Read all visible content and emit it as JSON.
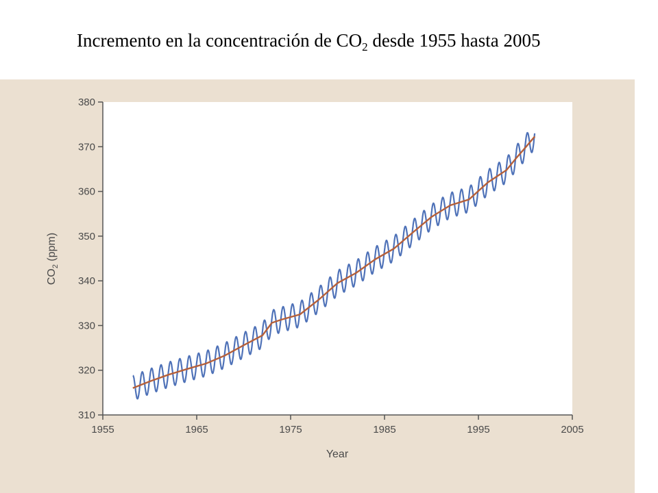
{
  "slide": {
    "title_prefix": "Incremento en la concentración de CO",
    "title_sub": "2",
    "title_suffix": " desde 1955 hasta 2005"
  },
  "chart_data": {
    "type": "line",
    "title": "Incremento en la concentración de CO2 desde 1955 hasta 2005",
    "xlabel": "Year",
    "ylabel_main": "CO",
    "ylabel_sub": "2",
    "ylabel_unit": " (ppm)",
    "xlim": [
      1955,
      2005
    ],
    "ylim": [
      310,
      380
    ],
    "x_ticks": [
      "1955",
      "1965",
      "1975",
      "1985",
      "1995",
      "2005"
    ],
    "y_ticks": [
      "310",
      "320",
      "330",
      "340",
      "350",
      "360",
      "370",
      "380"
    ],
    "grid": false,
    "colors": {
      "monthly": "#4f72b8",
      "trend": "#b5603a",
      "plot_bg": "#ffffff",
      "panel_bg": "#ebe0d1",
      "axis": "#555555"
    },
    "series": [
      {
        "key": "monthly",
        "seasonal_amplitude_ppm": 2.8,
        "x": [
          1958.2,
          2001.0
        ]
      },
      {
        "key": "trend",
        "x": [
          1958.2,
          1960,
          1962,
          1964,
          1966,
          1968,
          1970,
          1972,
          1973,
          1974,
          1976,
          1978,
          1980,
          1982,
          1984,
          1986,
          1988,
          1990,
          1992,
          1994,
          1996,
          1998,
          1999,
          2000,
          2001
        ],
        "values": [
          316.0,
          317.5,
          319.0,
          320.3,
          321.5,
          323.3,
          325.6,
          327.8,
          330.6,
          331.3,
          332.5,
          335.8,
          339.5,
          341.8,
          344.8,
          347.2,
          350.8,
          354.3,
          356.9,
          358.2,
          362.0,
          364.8,
          367.4,
          369.8,
          372.3
        ]
      }
    ]
  }
}
